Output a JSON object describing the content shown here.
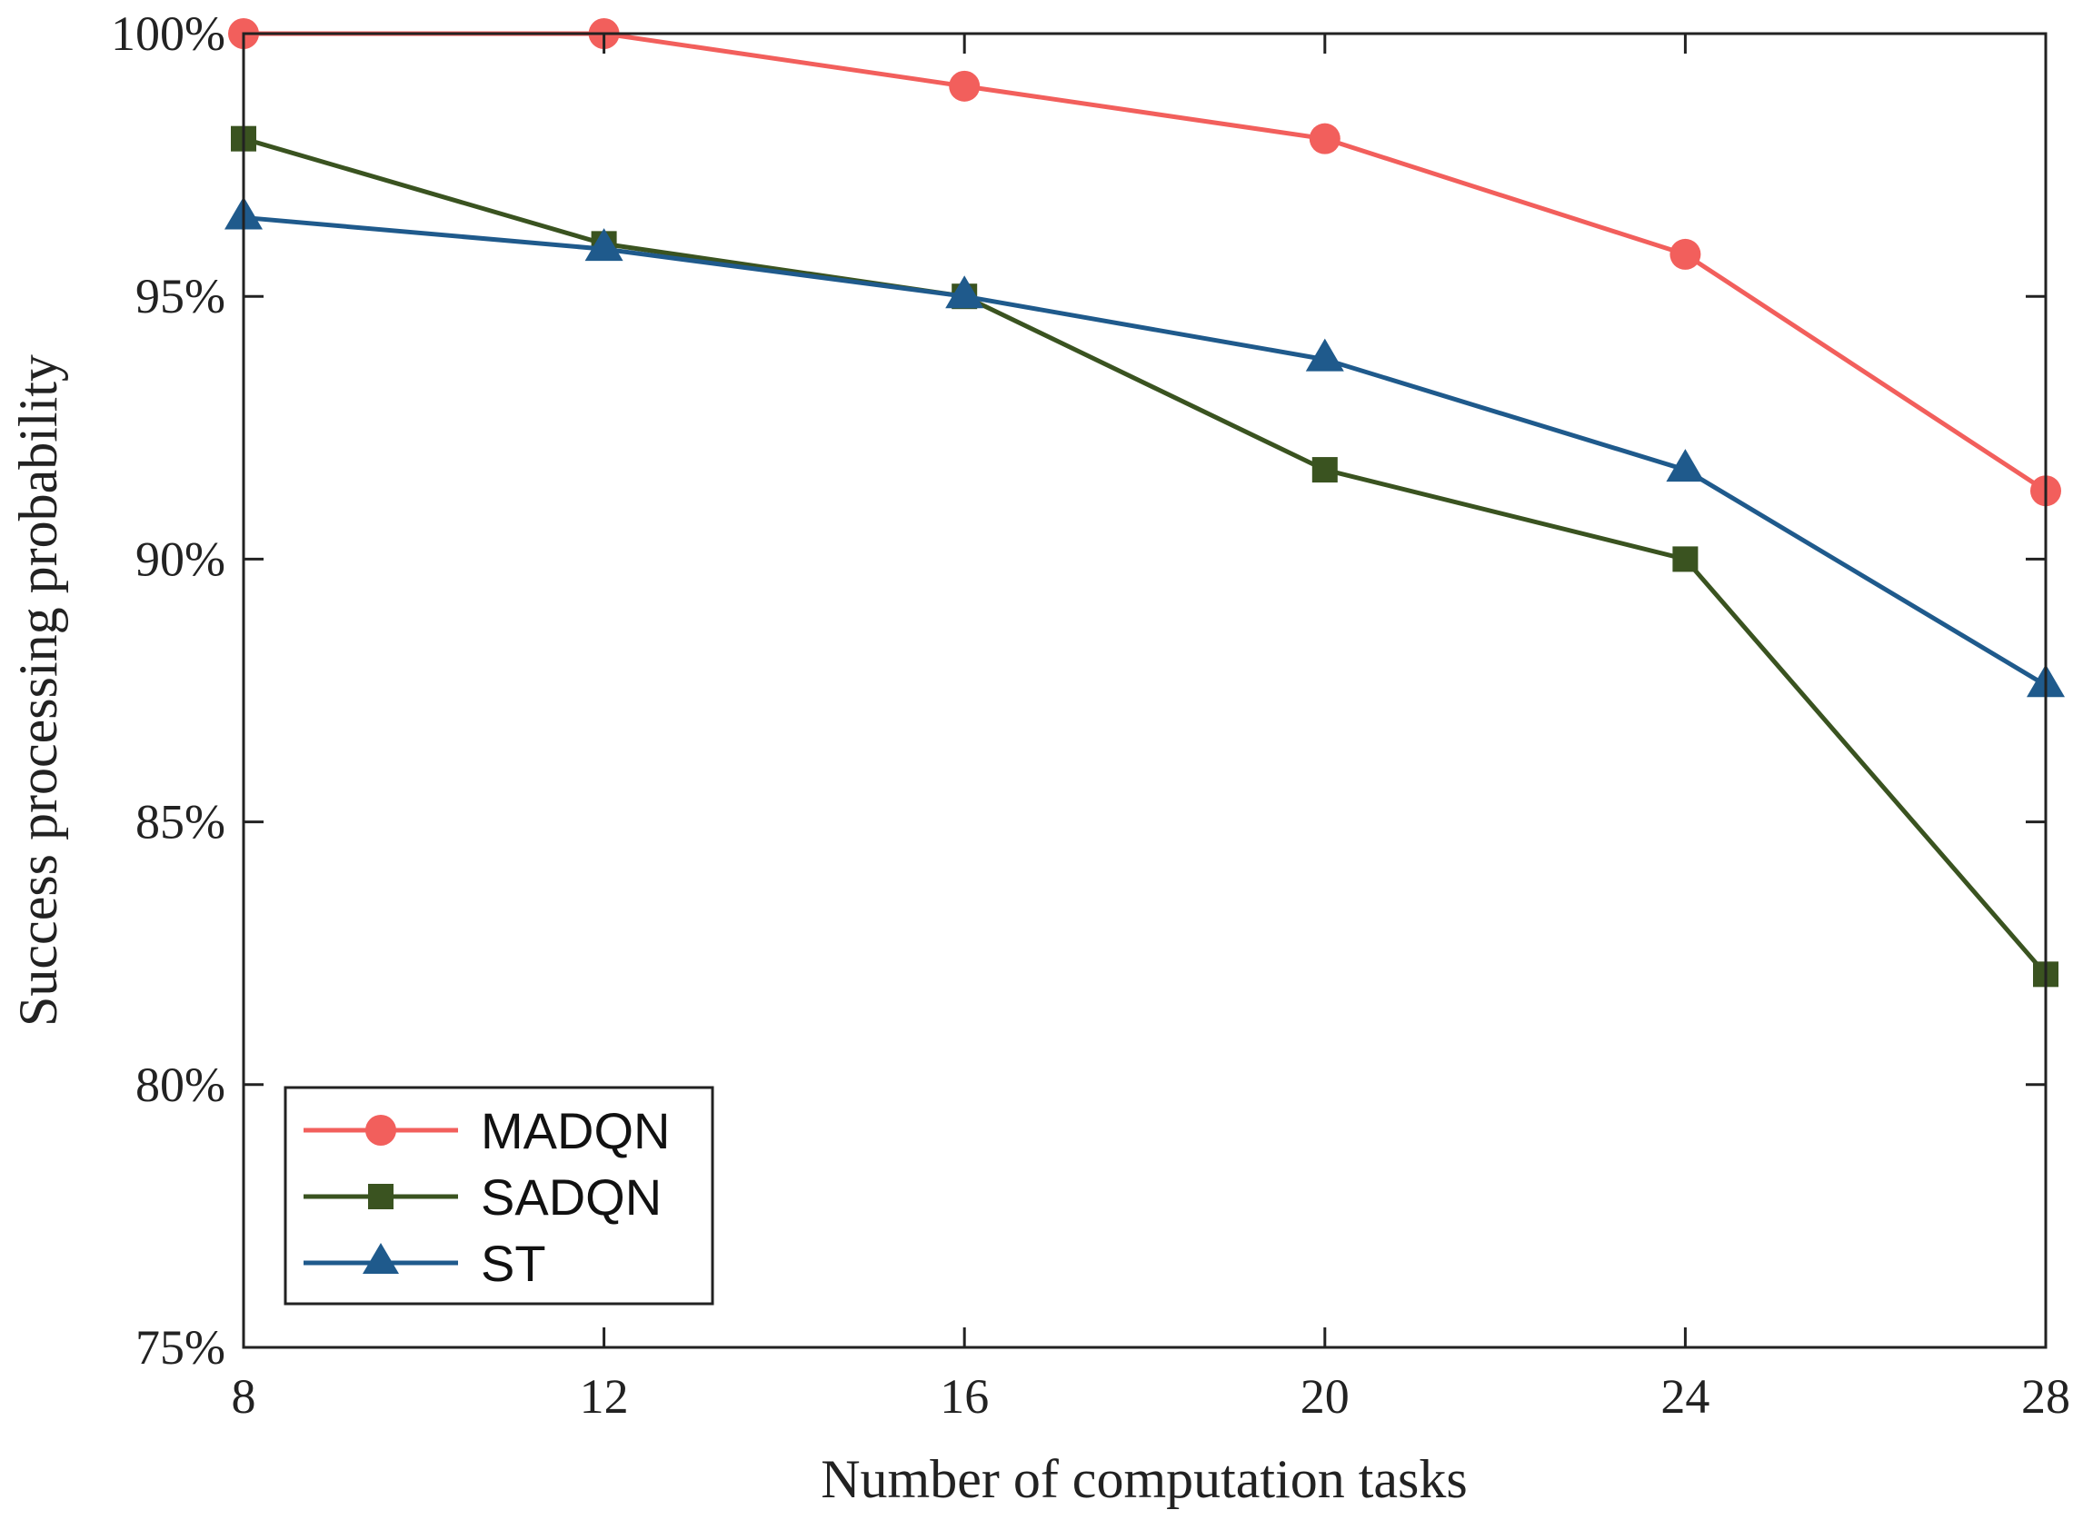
{
  "chart_data": {
    "type": "line",
    "title": "",
    "xlabel": "Number of computation tasks",
    "ylabel": "Success processing probability",
    "x": [
      8,
      12,
      16,
      20,
      24,
      28
    ],
    "xlim": [
      8,
      28
    ],
    "ylim": [
      75,
      100
    ],
    "xticks": [
      8,
      12,
      16,
      20,
      24,
      28
    ],
    "xtick_labels": [
      "8",
      "12",
      "16",
      "20",
      "24",
      "28"
    ],
    "yticks": [
      75,
      80,
      85,
      90,
      95,
      100
    ],
    "ytick_labels": [
      "75%",
      "80%",
      "85%",
      "90%",
      "95%",
      "100%"
    ],
    "grid": false,
    "legend_position": "bottom-left",
    "series": [
      {
        "name": "MADQN",
        "marker": "circle",
        "color": "#f25f5c",
        "values": [
          100,
          100,
          99,
          98,
          95.8,
          91.3
        ]
      },
      {
        "name": "SADQN",
        "marker": "square",
        "color": "#3a5320",
        "values": [
          98,
          96,
          95,
          91.7,
          90,
          82.1
        ]
      },
      {
        "name": "ST",
        "marker": "triangle",
        "color": "#1f5a8c",
        "values": [
          96.5,
          95.9,
          95,
          93.8,
          91.7,
          87.6
        ]
      }
    ]
  }
}
